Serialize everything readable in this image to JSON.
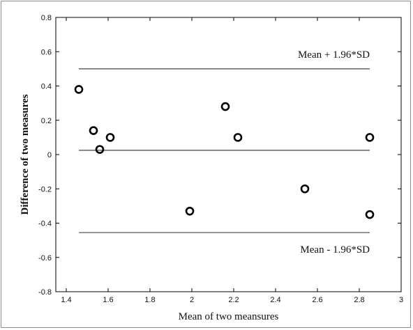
{
  "chart_data": {
    "type": "scatter",
    "title": "",
    "xlabel": "Mean of two meansures",
    "ylabel": "Difference of two measures",
    "xlim": [
      1.35,
      3.0
    ],
    "ylim": [
      -0.8,
      0.8
    ],
    "xticks": [
      "1.4",
      "1.6",
      "1.8",
      "2",
      "2.2",
      "2.4",
      "2.6",
      "2.8",
      "3"
    ],
    "yticks": [
      "0.8",
      "0.6",
      "0.4",
      "0.2",
      "0",
      "-0.2",
      "-0.4",
      "-0.6",
      "-0.8"
    ],
    "grid": false,
    "points": [
      {
        "x": 1.46,
        "y": 0.38
      },
      {
        "x": 1.53,
        "y": 0.14
      },
      {
        "x": 1.56,
        "y": 0.03
      },
      {
        "x": 1.61,
        "y": 0.1
      },
      {
        "x": 1.99,
        "y": -0.33
      },
      {
        "x": 2.16,
        "y": 0.28
      },
      {
        "x": 2.22,
        "y": 0.1
      },
      {
        "x": 2.54,
        "y": -0.2
      },
      {
        "x": 2.85,
        "y": 0.1
      },
      {
        "x": 2.85,
        "y": -0.35
      }
    ],
    "reference_lines": [
      {
        "y": 0.5,
        "x_range": [
          1.46,
          2.85
        ],
        "label": "Mean + 1.96*SD"
      },
      {
        "y": 0.025,
        "x_range": [
          1.46,
          2.85
        ],
        "label": ""
      },
      {
        "y": -0.455,
        "x_range": [
          1.46,
          2.85
        ],
        "label": "Mean - 1.96*SD"
      }
    ]
  }
}
